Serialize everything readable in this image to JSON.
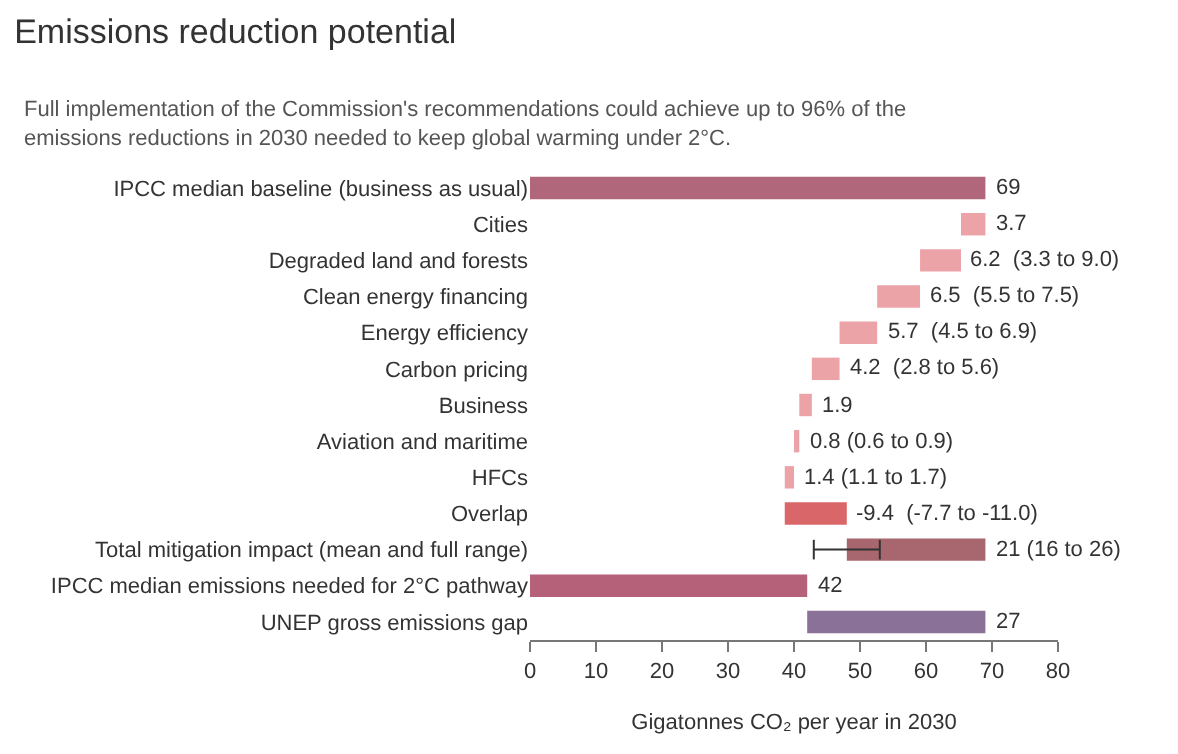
{
  "chart_data": {
    "type": "bar",
    "orientation": "horizontal",
    "title": "Emissions reduction potential",
    "subtitle": "Full implementation of the Commission's recommendations could achieve up to 96% of the emissions reductions in 2030 needed to keep global warming under 2°C.",
    "xlabel": "Gigatonnes CO₂ per year in 2030",
    "categories": [
      "IPCC median baseline (business as usual)",
      "Cities",
      "Degraded land and forests",
      "Clean energy financing",
      "Energy efficiency",
      "Carbon pricing",
      "Business",
      "Aviation and maritime",
      "HFCs",
      "Overlap",
      "Total mitigation impact (mean and full range)",
      "IPCC median emissions needed for 2°C pathway",
      "UNEP gross emissions gap"
    ],
    "values": [
      69,
      3.7,
      6.2,
      6.5,
      5.7,
      4.2,
      1.9,
      0.8,
      1.4,
      -9.4,
      21,
      42,
      27
    ],
    "base": [
      0,
      65.3,
      59.1,
      52.6,
      46.9,
      42.7,
      40.8,
      40.0,
      38.6,
      48.0,
      48,
      0,
      42
    ],
    "colors": [
      "#b0677b",
      "#eba3a8",
      "#eba3a8",
      "#eba3a8",
      "#eba3a8",
      "#eba3a8",
      "#eba3a8",
      "#eba3a8",
      "#eba3a8",
      "#d9676a",
      "#a8666f",
      "#b5617a",
      "#8a7197"
    ],
    "value_labels": [
      "69",
      "3.7",
      "6.2  (3.3 to 9.0)",
      "6.5  (5.5 to 7.5)",
      "5.7  (4.5 to 6.9)",
      "4.2  (2.8 to 5.6)",
      "1.9",
      "0.8 (0.6 to 0.9)",
      "1.4 (1.1 to 1.7)",
      "-9.4  (-7.7 to -11.0)",
      "21 (16 to 26)",
      "42",
      "27"
    ],
    "errors": [
      null,
      null,
      null,
      null,
      null,
      null,
      null,
      null,
      null,
      null,
      [
        43,
        53
      ],
      null,
      null
    ],
    "xlim": [
      0,
      80
    ],
    "xticks": [
      0,
      10,
      20,
      30,
      40,
      50,
      60,
      70,
      80
    ]
  }
}
